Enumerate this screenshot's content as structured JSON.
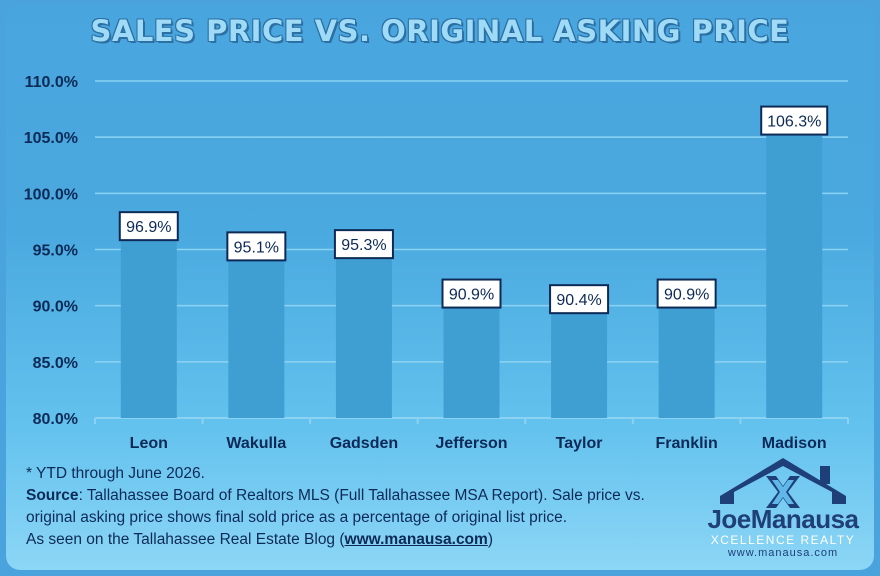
{
  "title": "SALES PRICE VS. ORIGINAL ASKING PRICE",
  "chart_data": {
    "type": "bar",
    "title": "SALES PRICE VS. ORIGINAL ASKING PRICE",
    "categories": [
      "Leon",
      "Wakulla",
      "Gadsden",
      "Jefferson",
      "Taylor",
      "Franklin",
      "Madison"
    ],
    "values": [
      96.9,
      95.1,
      95.3,
      90.9,
      90.4,
      90.9,
      106.3
    ],
    "value_labels": [
      "96.9%",
      "95.1%",
      "95.3%",
      "90.9%",
      "90.4%",
      "90.9%",
      "106.3%"
    ],
    "yticks": [
      "80.0%",
      "85.0%",
      "90.0%",
      "95.0%",
      "100.0%",
      "105.0%",
      "110.0%"
    ],
    "ylim": [
      80,
      110
    ],
    "grid": true,
    "xlabel": "",
    "ylabel": "",
    "colors": {
      "bar": "#3f9fd3",
      "grid": "#8cd3f3",
      "label_border": "#0d2a57",
      "label_bg": "#ffffff",
      "text": "#0d2a57"
    }
  },
  "footnote": {
    "line1": "* YTD through June 2026.",
    "source_label": "Source",
    "source_text": ": Tallahassee Board of Realtors MLS (Full Tallahassee MSA Report). Sale price vs. original asking price shows final sold price as a percentage of original list price.",
    "seen_prefix": "As seen on the Tallahassee Real Estate Blog (",
    "seen_url": "www.manausa.com",
    "seen_suffix": ")"
  },
  "logo": {
    "name": "JoeManausa",
    "subtitle": "XCELLENCE REALTY",
    "url": "www.manausa.com",
    "icon": "house-x-icon"
  }
}
